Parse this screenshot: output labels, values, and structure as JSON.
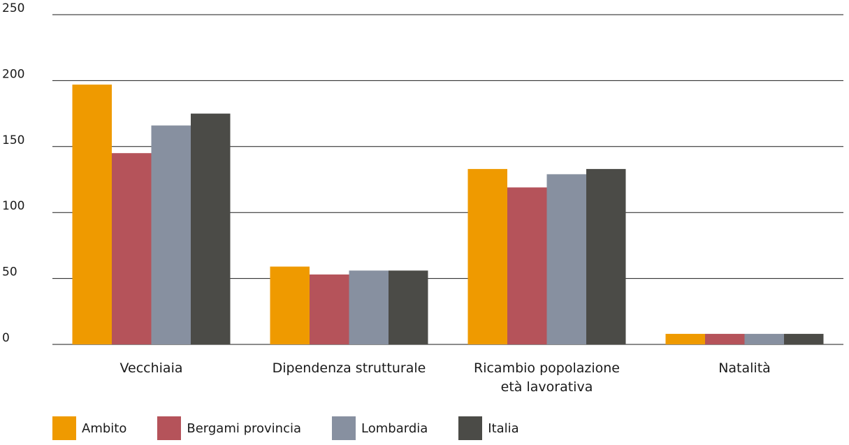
{
  "chart_data": {
    "type": "bar",
    "title": "",
    "xlabel": "",
    "ylabel": "",
    "ylim": [
      0,
      250
    ],
    "yticks": [
      0,
      50,
      100,
      150,
      200,
      250
    ],
    "grid": true,
    "legend_position": "bottom-left",
    "categories": [
      [
        "Vecchiaia"
      ],
      [
        "Dipendenza strutturale"
      ],
      [
        "Ricambio popolazione",
        "età lavorativa"
      ],
      [
        "Natalità"
      ]
    ],
    "series": [
      {
        "name": "Ambito",
        "color": "#EF9A00",
        "values": [
          197,
          59,
          133,
          8
        ]
      },
      {
        "name": "Bergami provincia",
        "color": "#B5535A",
        "values": [
          145,
          53,
          119,
          8
        ]
      },
      {
        "name": "Lombardia",
        "color": "#8790A0",
        "values": [
          166,
          56,
          129,
          8
        ]
      },
      {
        "name": "Italia",
        "color": "#4B4B47",
        "values": [
          175,
          56,
          133,
          8
        ]
      }
    ]
  }
}
